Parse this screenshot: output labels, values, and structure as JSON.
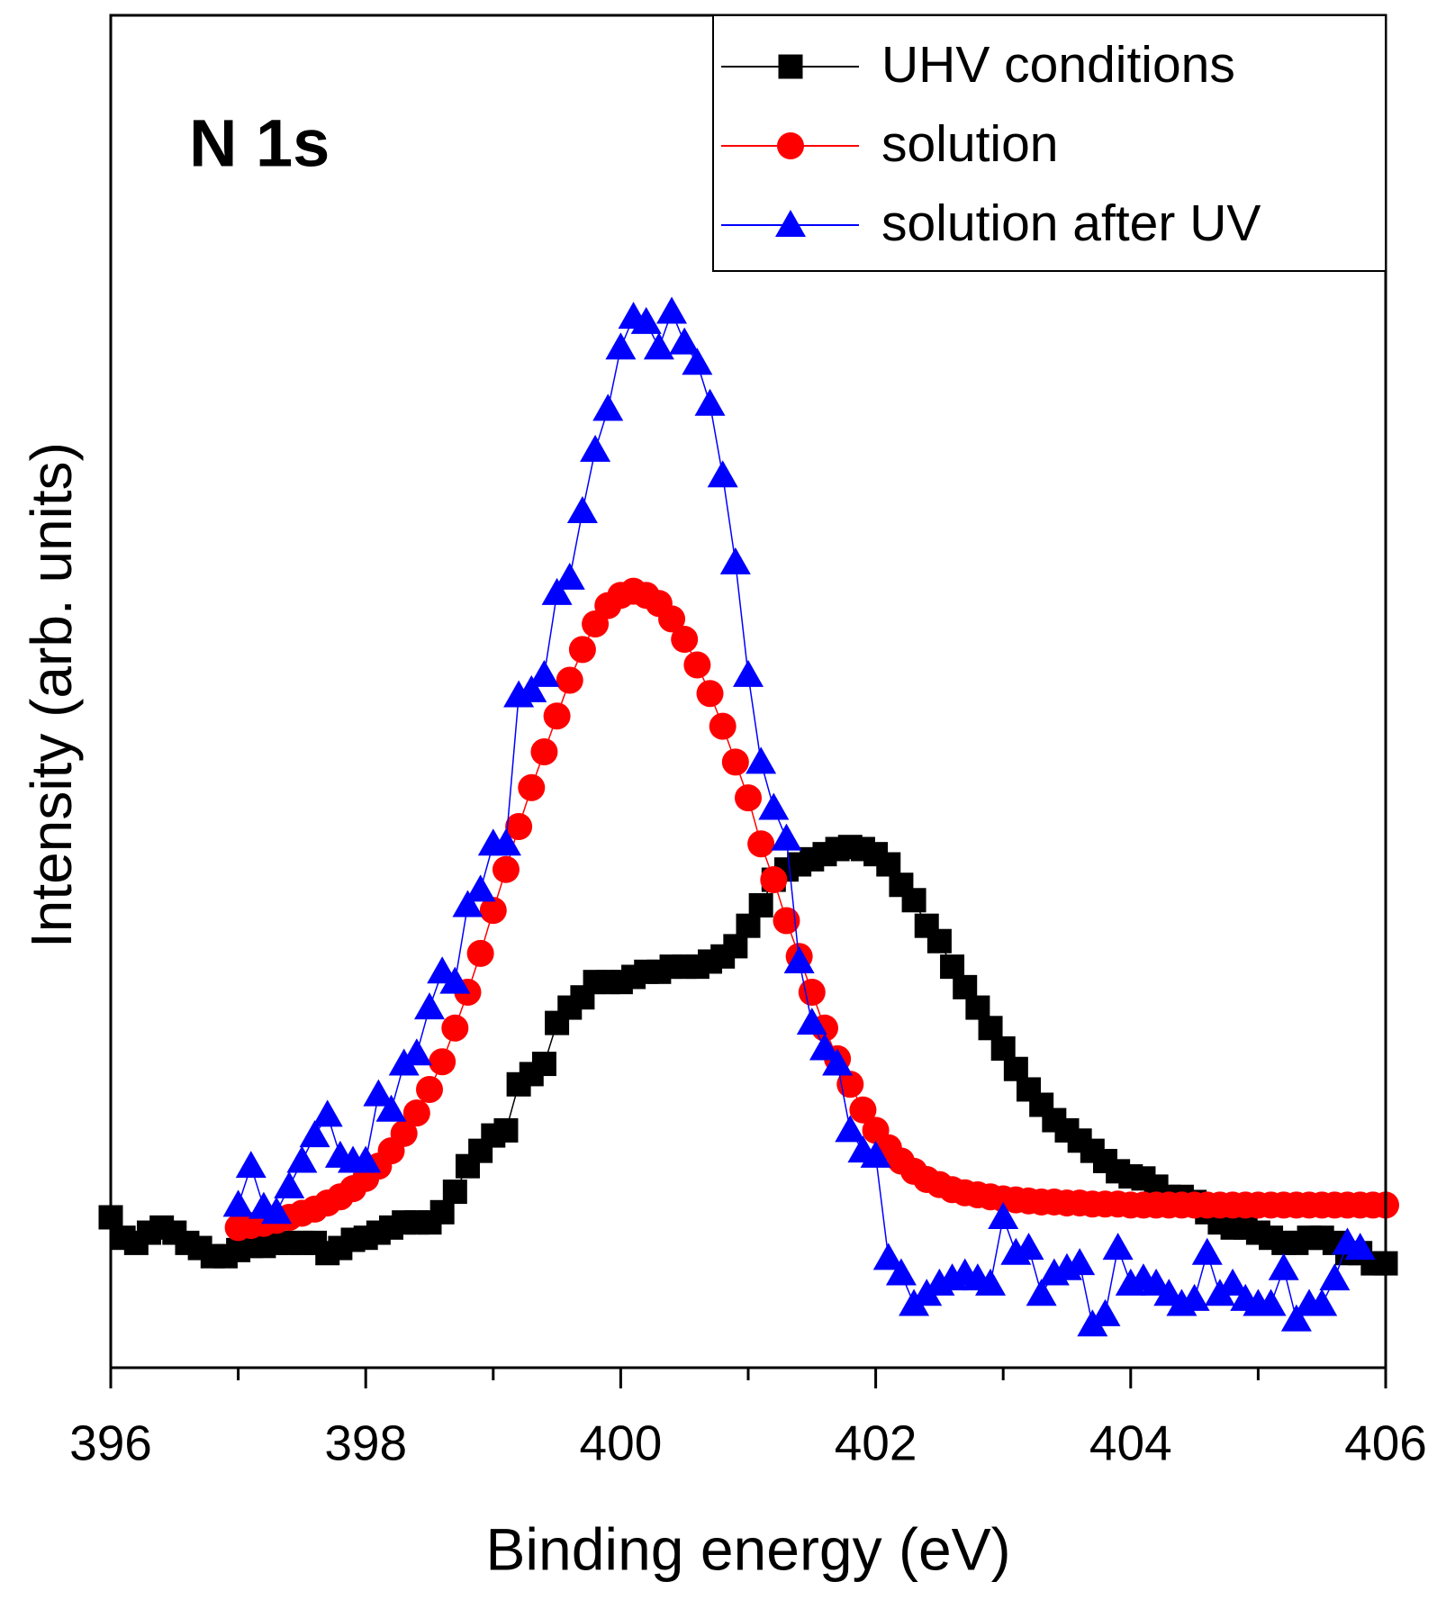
{
  "chart_data": {
    "type": "line",
    "annotation": "N 1s",
    "xlabel": "Binding energy (eV)",
    "ylabel": "Intensity (arb. units)",
    "xlim": [
      396,
      406
    ],
    "xticks": [
      396,
      398,
      400,
      402,
      404,
      406
    ],
    "xminorticks": [
      397,
      399,
      401,
      403,
      405
    ],
    "ylim": [
      0,
      132.2
    ],
    "legend": "upper right",
    "series": [
      {
        "name": "UHV conditions",
        "color": "#000000",
        "marker": "square",
        "x": [
          396.0,
          396.1,
          396.2,
          396.3,
          396.4,
          396.5,
          396.6,
          396.7,
          396.8,
          396.9,
          397.0,
          397.1,
          397.2,
          397.3,
          397.4,
          397.5,
          397.6,
          397.7,
          397.8,
          397.9,
          398.0,
          398.1,
          398.2,
          398.3,
          398.4,
          398.5,
          398.6,
          398.7,
          398.8,
          398.9,
          399.0,
          399.1,
          399.2,
          399.3,
          399.4,
          399.5,
          399.6,
          399.7,
          399.8,
          399.9,
          400.0,
          400.1,
          400.2,
          400.3,
          400.4,
          400.5,
          400.6,
          400.7,
          400.8,
          400.9,
          401.0,
          401.1,
          401.2,
          401.3,
          401.4,
          401.5,
          401.6,
          401.7,
          401.8,
          401.9,
          402.0,
          402.1,
          402.2,
          402.3,
          402.4,
          402.5,
          402.6,
          402.7,
          402.8,
          402.9,
          403.0,
          403.1,
          403.2,
          403.3,
          403.4,
          403.5,
          403.6,
          403.7,
          403.8,
          403.9,
          404.0,
          404.1,
          404.2,
          404.3,
          404.4,
          404.5,
          404.6,
          404.7,
          404.8,
          404.9,
          405.0,
          405.1,
          405.2,
          405.3,
          405.4,
          405.5,
          405.6,
          405.7,
          405.8,
          405.9,
          406.0
        ],
        "values": [
          14.7,
          12.7,
          12.2,
          13.2,
          13.7,
          13.2,
          12.2,
          11.7,
          10.9,
          10.9,
          11.5,
          11.9,
          11.9,
          12.2,
          12.2,
          12.2,
          12.2,
          11.2,
          11.7,
          12.5,
          12.7,
          13.2,
          13.7,
          14.2,
          14.2,
          14.2,
          15.2,
          17.2,
          19.7,
          21.2,
          22.7,
          23.2,
          27.7,
          28.7,
          29.7,
          33.7,
          35.2,
          36.2,
          37.7,
          37.7,
          37.7,
          38.2,
          38.7,
          38.7,
          39.2,
          39.2,
          39.2,
          39.7,
          40.2,
          41.2,
          43.2,
          45.2,
          47.7,
          48.7,
          49.2,
          49.7,
          50.2,
          50.7,
          50.9,
          50.7,
          50.2,
          49.2,
          47.2,
          45.7,
          43.2,
          41.7,
          39.2,
          37.2,
          35.2,
          33.2,
          31.2,
          29.2,
          27.2,
          25.7,
          24.2,
          23.2,
          22.2,
          21.2,
          20.2,
          19.2,
          18.7,
          18.5,
          17.7,
          16.7,
          16.7,
          16.2,
          15.2,
          14.2,
          13.7,
          13.7,
          13.2,
          12.7,
          12.2,
          12.2,
          12.7,
          12.7,
          12.2,
          11.2,
          11.2,
          10.2,
          10.2
        ]
      },
      {
        "name": "solution",
        "color": "#ff0000",
        "marker": "circle",
        "x": [
          397.0,
          397.1,
          397.2,
          397.3,
          397.4,
          397.5,
          397.6,
          397.7,
          397.8,
          397.9,
          398.0,
          398.1,
          398.2,
          398.3,
          398.4,
          398.5,
          398.6,
          398.7,
          398.8,
          398.9,
          399.0,
          399.1,
          399.2,
          399.3,
          399.4,
          399.5,
          399.6,
          399.7,
          399.8,
          399.9,
          400.0,
          400.1,
          400.2,
          400.3,
          400.4,
          400.5,
          400.6,
          400.7,
          400.8,
          400.9,
          401.0,
          401.1,
          401.2,
          401.3,
          401.4,
          401.5,
          401.6,
          401.7,
          401.8,
          401.9,
          402.0,
          402.1,
          402.2,
          402.3,
          402.4,
          402.5,
          402.6,
          402.7,
          402.8,
          402.9,
          403.0,
          403.1,
          403.2,
          403.3,
          403.4,
          403.5,
          403.6,
          403.7,
          403.8,
          403.9,
          404.0,
          404.1,
          404.2,
          404.3,
          404.4,
          404.5,
          404.6,
          404.7,
          404.8,
          404.9,
          405.0,
          405.1,
          405.2,
          405.3,
          405.4,
          405.5,
          405.6,
          405.7,
          405.8,
          405.9,
          406.0
        ],
        "values": [
          13.7,
          13.9,
          14.1,
          14.4,
          14.7,
          15.1,
          15.5,
          16.1,
          16.7,
          17.5,
          18.5,
          19.7,
          21.2,
          22.9,
          24.9,
          27.2,
          29.9,
          33.2,
          36.7,
          40.5,
          44.7,
          48.7,
          52.9,
          56.7,
          60.2,
          63.7,
          67.2,
          70.2,
          72.7,
          74.5,
          75.5,
          75.9,
          75.5,
          74.7,
          73.2,
          71.2,
          68.7,
          65.9,
          62.7,
          59.2,
          55.7,
          51.2,
          47.7,
          43.7,
          40.2,
          36.7,
          33.2,
          30.2,
          27.7,
          25.2,
          23.2,
          21.5,
          20.2,
          19.2,
          18.4,
          17.9,
          17.4,
          17.1,
          16.9,
          16.7,
          16.5,
          16.4,
          16.3,
          16.2,
          16.2,
          16.1,
          16.1,
          16.0,
          16.0,
          16.0,
          15.9,
          15.9,
          15.9,
          15.9,
          15.9,
          15.9,
          15.9,
          15.9,
          15.9,
          15.9,
          15.9,
          15.9,
          15.9,
          15.9,
          15.9,
          15.9,
          15.9,
          15.9,
          15.9,
          15.9,
          15.9
        ]
      },
      {
        "name": "solution after UV",
        "color": "#0000ff",
        "marker": "triangle",
        "x": [
          397.0,
          397.1,
          397.2,
          397.3,
          397.4,
          397.5,
          397.6,
          397.7,
          397.8,
          397.9,
          398.0,
          398.1,
          398.2,
          398.3,
          398.4,
          398.5,
          398.6,
          398.7,
          398.8,
          398.9,
          399.0,
          399.1,
          399.2,
          399.3,
          399.4,
          399.5,
          399.6,
          399.7,
          399.8,
          399.9,
          400.0,
          400.1,
          400.2,
          400.3,
          400.4,
          400.5,
          400.6,
          400.7,
          400.8,
          400.9,
          401.0,
          401.1,
          401.2,
          401.3,
          401.4,
          401.5,
          401.6,
          401.7,
          401.8,
          401.9,
          402.0,
          402.1,
          402.2,
          402.3,
          402.4,
          402.5,
          402.6,
          402.7,
          402.8,
          402.9,
          403.0,
          403.1,
          403.2,
          403.3,
          403.4,
          403.5,
          403.6,
          403.7,
          403.8,
          403.9,
          404.0,
          404.1,
          404.2,
          404.3,
          404.4,
          404.5,
          404.6,
          404.7,
          404.8,
          404.9,
          405.0,
          405.1,
          405.2,
          405.3,
          405.4,
          405.5,
          405.6,
          405.7,
          405.8
        ],
        "values": [
          15.9,
          19.7,
          15.7,
          15.2,
          17.7,
          20.2,
          22.7,
          24.7,
          20.7,
          20.2,
          20.2,
          26.7,
          25.2,
          29.7,
          30.7,
          35.2,
          38.7,
          37.7,
          45.2,
          46.7,
          51.2,
          51.2,
          65.7,
          66.2,
          67.7,
          75.7,
          77.2,
          83.7,
          89.7,
          93.7,
          99.7,
          102.7,
          102.2,
          99.7,
          103.2,
          100.2,
          98.2,
          94.2,
          87.2,
          78.7,
          67.7,
          59.2,
          54.7,
          51.7,
          39.7,
          33.7,
          31.2,
          29.7,
          23.2,
          21.2,
          20.7,
          10.7,
          9.2,
          6.2,
          7.2,
          8.2,
          8.7,
          9.2,
          8.7,
          8.2,
          14.7,
          11.2,
          11.7,
          7.2,
          9.2,
          9.7,
          10.2,
          4.2,
          5.2,
          11.7,
          8.2,
          8.7,
          8.2,
          7.2,
          6.2,
          6.7,
          11.2,
          7.2,
          8.2,
          6.7,
          6.2,
          6.2,
          9.7,
          4.7,
          6.2,
          6.2,
          8.7,
          12.2,
          11.7
        ]
      }
    ]
  }
}
